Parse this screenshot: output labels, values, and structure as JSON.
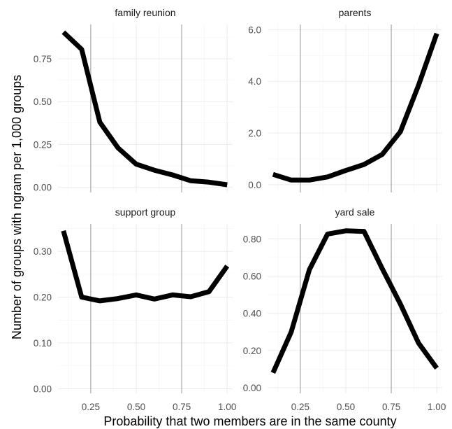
{
  "chart_data": {
    "type": "line",
    "xlabel": "Probability that two members are in the same county",
    "ylabel": "Number of groups with ngram per 1,000 groups",
    "x_ticks": [
      "0.25",
      "0.50",
      "0.75",
      "1.00"
    ],
    "x_tick_values": [
      0.25,
      0.5,
      0.75,
      1.0
    ],
    "xlim": [
      0.07,
      1.03
    ],
    "reference_lines_x": [
      0.25,
      0.75
    ],
    "grid": true,
    "panels": [
      {
        "title": "family reunion",
        "ylim": [
          -0.03,
          0.95
        ],
        "y_ticks": [
          "0.00",
          "0.25",
          "0.50",
          "0.75"
        ],
        "y_tick_values": [
          0,
          0.25,
          0.5,
          0.75
        ],
        "x": [
          0.1,
          0.2,
          0.3,
          0.4,
          0.5,
          0.6,
          0.7,
          0.8,
          0.9,
          1.0
        ],
        "y": [
          0.905,
          0.805,
          0.38,
          0.23,
          0.135,
          0.1,
          0.072,
          0.038,
          0.03,
          0.015
        ]
      },
      {
        "title": "parents",
        "ylim": [
          -0.3,
          6.2
        ],
        "y_ticks": [
          "0.0",
          "2.0",
          "4.0",
          "6.0"
        ],
        "y_tick_values": [
          0,
          2,
          4,
          6
        ],
        "x": [
          0.1,
          0.2,
          0.3,
          0.4,
          0.5,
          0.6,
          0.7,
          0.8,
          0.9,
          1.0
        ],
        "y": [
          0.4,
          0.18,
          0.18,
          0.3,
          0.55,
          0.78,
          1.17,
          2.05,
          3.85,
          5.85
        ]
      },
      {
        "title": "support group",
        "ylim": [
          -0.01,
          0.36
        ],
        "y_ticks": [
          "0.00",
          "0.10",
          "0.20",
          "0.30"
        ],
        "y_tick_values": [
          0,
          0.1,
          0.2,
          0.3
        ],
        "x": [
          0.1,
          0.2,
          0.3,
          0.4,
          0.5,
          0.6,
          0.7,
          0.8,
          0.9,
          1.0
        ],
        "y": [
          0.345,
          0.2,
          0.192,
          0.197,
          0.205,
          0.196,
          0.205,
          0.201,
          0.212,
          0.268
        ]
      },
      {
        "title": "yard sale",
        "ylim": [
          -0.03,
          0.88
        ],
        "y_ticks": [
          "0.00",
          "0.20",
          "0.40",
          "0.60",
          "0.80"
        ],
        "y_tick_values": [
          0,
          0.2,
          0.4,
          0.6,
          0.8
        ],
        "x": [
          0.1,
          0.2,
          0.3,
          0.4,
          0.5,
          0.6,
          0.7,
          0.8,
          0.9,
          1.0
        ],
        "y": [
          0.08,
          0.3,
          0.635,
          0.826,
          0.843,
          0.84,
          0.64,
          0.45,
          0.24,
          0.105
        ]
      }
    ]
  }
}
